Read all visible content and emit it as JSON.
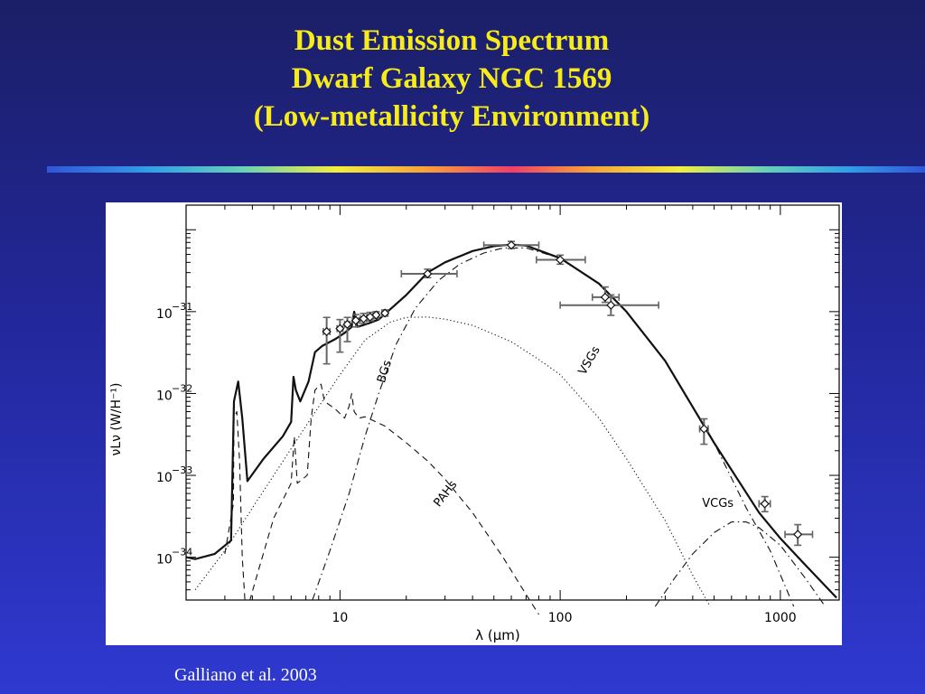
{
  "title": {
    "line1": "Dust Emission Spectrum",
    "line2": "Dwarf Galaxy NGC 1569",
    "line3": "(Low-metallicity Environment)"
  },
  "citation": "Galliano et al. 2003",
  "colors": {
    "background": "#22279a",
    "title": "#f7ec1a",
    "citation": "#ffffff",
    "panel": "#ffffff"
  },
  "chart_data": {
    "type": "line",
    "xlabel": "λ (μm)",
    "ylabel": "νLν (W/H⁻¹)",
    "xscale": "log",
    "yscale": "log",
    "xlim": [
      2,
      1850
    ],
    "ylim": [
      3e-35,
      2e-30
    ],
    "x_ticks": [
      {
        "value": 10,
        "label": "10"
      },
      {
        "value": 100,
        "label": "100"
      },
      {
        "value": 1000,
        "label": "1000"
      }
    ],
    "y_ticks": [
      {
        "value": 1e-34,
        "base": "10",
        "exp": "−34"
      },
      {
        "value": 1e-33,
        "base": "10",
        "exp": "−33"
      },
      {
        "value": 1e-32,
        "base": "10",
        "exp": "−32"
      },
      {
        "value": 1e-31,
        "base": "10",
        "exp": "−31"
      }
    ],
    "grid": false,
    "series": [
      {
        "key": "total",
        "style": "solid",
        "points": [
          [
            2.0,
            1e-34
          ],
          [
            2.2,
            9.5e-35
          ],
          [
            2.7,
            1.1e-34
          ],
          [
            3.2,
            1.6e-34
          ],
          [
            3.3,
            8e-33
          ],
          [
            3.45,
            1.4e-32
          ],
          [
            3.6,
            5e-33
          ],
          [
            3.8,
            8.5e-34
          ],
          [
            4.5,
            1.6e-33
          ],
          [
            5.5,
            3e-33
          ],
          [
            6.0,
            4.5e-33
          ],
          [
            6.15,
            1.6e-32
          ],
          [
            6.3,
            1.1e-32
          ],
          [
            6.6,
            8e-33
          ],
          [
            7.2,
            1.4e-32
          ],
          [
            7.7,
            3.2e-32
          ],
          [
            8.3,
            3.8e-32
          ],
          [
            9.5,
            4.6e-32
          ],
          [
            10.5,
            5.5e-32
          ],
          [
            11.3,
            6.5e-32
          ],
          [
            11.6,
            1e-31
          ],
          [
            12.0,
            6.5e-32
          ],
          [
            13.5,
            7.2e-32
          ],
          [
            15,
            8e-32
          ],
          [
            20,
            1.6e-31
          ],
          [
            25,
            3e-31
          ],
          [
            30,
            4e-31
          ],
          [
            40,
            5.5e-31
          ],
          [
            50,
            6.3e-31
          ],
          [
            60,
            6.6e-31
          ],
          [
            70,
            6.4e-31
          ],
          [
            100,
            4.5e-31
          ],
          [
            150,
            2.2e-31
          ],
          [
            200,
            1e-31
          ],
          [
            300,
            2.5e-32
          ],
          [
            500,
            2.5e-33
          ],
          [
            800,
            3.5e-34
          ],
          [
            1000,
            1.7e-34
          ],
          [
            1300,
            8e-35
          ],
          [
            1800,
            3.2e-35
          ]
        ]
      },
      {
        "key": "vsg",
        "label": "VSGs",
        "style": "dotted",
        "label_at": [
          [
            140,
            2.4e-32
          ],
          -60
        ],
        "points": [
          [
            2.2,
            4e-35
          ],
          [
            3,
            1.2e-34
          ],
          [
            4,
            4e-34
          ],
          [
            5,
            1e-33
          ],
          [
            7,
            4e-33
          ],
          [
            10,
            1.7e-32
          ],
          [
            13,
            4.5e-32
          ],
          [
            17,
            7.5e-32
          ],
          [
            20,
            8.5e-32
          ],
          [
            25,
            8.6e-32
          ],
          [
            30,
            8.1e-32
          ],
          [
            40,
            6.8e-32
          ],
          [
            60,
            4.3e-32
          ],
          [
            80,
            2.6e-32
          ],
          [
            100,
            1.7e-32
          ],
          [
            150,
            5e-33
          ],
          [
            200,
            1.6e-33
          ],
          [
            300,
            2.8e-34
          ],
          [
            400,
            6e-35
          ],
          [
            480,
            2.5e-35
          ]
        ]
      },
      {
        "key": "bg",
        "label": "BGs",
        "style": "dashdot",
        "label_at": [
          [
            16.5,
            1.8e-32
          ],
          -73
        ],
        "points": [
          [
            7.5,
            3e-35
          ],
          [
            9,
            1.2e-34
          ],
          [
            11,
            6e-34
          ],
          [
            13,
            3e-33
          ],
          [
            15,
            1e-32
          ],
          [
            18,
            4e-32
          ],
          [
            22,
            1.1e-31
          ],
          [
            28,
            2.4e-31
          ],
          [
            35,
            3.8e-31
          ],
          [
            45,
            5.2e-31
          ],
          [
            55,
            6e-31
          ],
          [
            70,
            6e-31
          ],
          [
            100,
            4.5e-31
          ],
          [
            150,
            2.2e-31
          ],
          [
            200,
            1e-31
          ],
          [
            300,
            2.5e-32
          ],
          [
            500,
            2.5e-33
          ],
          [
            700,
            4e-34
          ],
          [
            900,
            1.2e-34
          ],
          [
            1150,
            2.5e-35
          ]
        ]
      },
      {
        "key": "pah",
        "label": "PAHs",
        "style": "dashed",
        "label_at": [
          [
            31,
            5.6e-34
          ],
          -52
        ],
        "points": [
          [
            3.0,
            1.1e-34
          ],
          [
            3.28,
            4.5e-34
          ],
          [
            3.3,
            5e-33
          ],
          [
            3.4,
            6e-33
          ],
          [
            3.5,
            1.5e-33
          ],
          [
            3.6,
            1e-34
          ],
          [
            3.7,
            3e-35
          ],
          [
            3.9,
            3e-35
          ],
          [
            4.2,
            6e-35
          ],
          [
            5,
            3e-34
          ],
          [
            6,
            8e-34
          ],
          [
            6.2,
            3e-33
          ],
          [
            6.4,
            8e-34
          ],
          [
            7.1,
            1e-33
          ],
          [
            7.4,
            5e-33
          ],
          [
            7.7,
            1.1e-32
          ],
          [
            8.2,
            1.3e-32
          ],
          [
            8.5,
            8e-33
          ],
          [
            9.5,
            6.5e-33
          ],
          [
            10.5,
            5e-33
          ],
          [
            11.0,
            7e-33
          ],
          [
            11.3,
            1e-32
          ],
          [
            11.6,
            6e-33
          ],
          [
            12.2,
            5e-33
          ],
          [
            13,
            5.2e-33
          ],
          [
            16,
            4e-33
          ],
          [
            20,
            2.5e-33
          ],
          [
            25,
            1.5e-33
          ],
          [
            30,
            9e-34
          ],
          [
            40,
            3.5e-34
          ],
          [
            55,
            1e-34
          ],
          [
            70,
            3.5e-35
          ],
          [
            80,
            2e-35
          ]
        ]
      },
      {
        "key": "vcg",
        "label": "VCGs",
        "style": "dashdot",
        "label_at": [
          [
            520,
            4.1e-34
          ],
          0
        ],
        "points": [
          [
            270,
            2.5e-35
          ],
          [
            330,
            5.5e-35
          ],
          [
            400,
            1.1e-34
          ],
          [
            500,
            2e-34
          ],
          [
            600,
            2.7e-34
          ],
          [
            700,
            2.7e-34
          ],
          [
            800,
            2.3e-34
          ],
          [
            1000,
            1.4e-34
          ],
          [
            1300,
            5.5e-35
          ],
          [
            1600,
            2.5e-35
          ]
        ]
      }
    ],
    "observations": [
      {
        "x": 8.7,
        "y": 5.7e-32,
        "xerr": [
          8.4,
          9.0
        ],
        "yerr": [
          2.3e-32,
          8.5e-32
        ]
      },
      {
        "x": 10.0,
        "y": 6.2e-32,
        "xerr": [
          9.7,
          10.3
        ],
        "yerr": [
          3.2e-32,
          8e-32
        ]
      },
      {
        "x": 10.8,
        "y": 7e-32,
        "xerr": [
          10.5,
          11.1
        ],
        "yerr": [
          4.3e-32,
          8.5e-32
        ]
      },
      {
        "x": 11.8,
        "y": 7.8e-32,
        "xerr": [
          11.4,
          12.2
        ],
        "yerr": [
          6.5e-32,
          9.2e-32
        ]
      },
      {
        "x": 12.8,
        "y": 8.2e-32,
        "xerr": [
          12.4,
          13.2
        ],
        "yerr": [
          7.2e-32,
          9.5e-32
        ]
      },
      {
        "x": 13.7,
        "y": 8.6e-32,
        "xerr": [
          13.3,
          14.1
        ],
        "yerr": [
          7.7e-32,
          9.8e-32
        ]
      },
      {
        "x": 14.6,
        "y": 9.1e-32,
        "xerr": [
          14.2,
          15.0
        ],
        "yerr": [
          8.2e-32,
          1e-31
        ]
      },
      {
        "x": 16.0,
        "y": 9.6e-32,
        "xerr": [
          15.5,
          16.5
        ],
        "yerr": [
          8.8e-32,
          1.05e-31
        ]
      },
      {
        "x": 25,
        "y": 2.9e-31,
        "xerr": [
          19,
          34
        ],
        "yerr": [
          2.6e-31,
          3.3e-31
        ]
      },
      {
        "x": 60,
        "y": 6.5e-31,
        "xerr": [
          45,
          80
        ],
        "yerr": [
          5.9e-31,
          7.2e-31
        ]
      },
      {
        "x": 100,
        "y": 4.3e-31,
        "xerr": [
          78,
          130
        ],
        "yerr": [
          3.8e-31,
          4.9e-31
        ]
      },
      {
        "x": 160,
        "y": 1.5e-31,
        "xerr": [
          140,
          185
        ],
        "yerr": [
          1.3e-31,
          2e-31
        ]
      },
      {
        "x": 170,
        "y": 1.2e-31,
        "xerr": [
          100,
          280
        ],
        "yerr": [
          9e-32,
          1.6e-31
        ]
      },
      {
        "x": 450,
        "y": 3.7e-33,
        "xerr": [
          430,
          470
        ],
        "yerr": [
          2.4e-33,
          4.9e-33
        ]
      },
      {
        "x": 850,
        "y": 4.5e-34,
        "xerr": [
          800,
          900
        ],
        "yerr": [
          3.6e-34,
          5.5e-34
        ]
      },
      {
        "x": 1200,
        "y": 1.9e-34,
        "xerr": [
          1050,
          1400
        ],
        "yerr": [
          1.4e-34,
          2.5e-34
        ]
      }
    ]
  }
}
